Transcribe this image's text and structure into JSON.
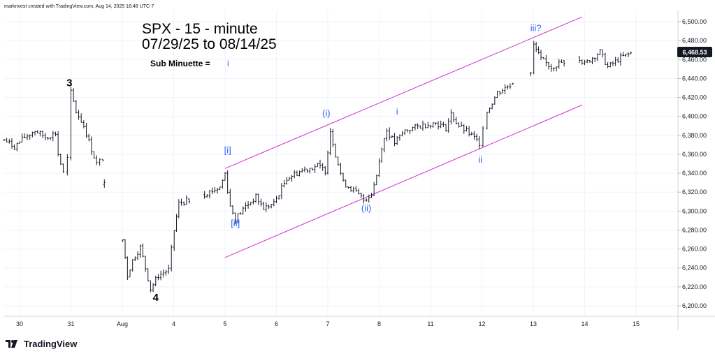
{
  "header": {
    "credit": "markrivest created with TradingView.com, Aug 14, 2025 18:48 UTC-7"
  },
  "brand": {
    "name": "TradingView"
  },
  "colors": {
    "price_bars": "#131722",
    "channel": "#cc33cc",
    "wave_labels_blue": "#2962ff",
    "wave_labels_black": "#000000",
    "last_price_box": "#131722",
    "grid": "#f0f3fa",
    "axis_text": "#131722"
  },
  "chart_data": {
    "type": "ohlc",
    "title": "SPX - 15 - minute",
    "subtitle": "07/29/25 to 08/14/25",
    "note_label": "Sub Minuette =",
    "note_value": "i",
    "last_price": "6,468.53",
    "x_axis": {
      "ticks": [
        {
          "label": "30",
          "slot": 0
        },
        {
          "label": "31",
          "slot": 1
        },
        {
          "label": "Aug",
          "slot": 2
        },
        {
          "label": "4",
          "slot": 3
        },
        {
          "label": "5",
          "slot": 4
        },
        {
          "label": "6",
          "slot": 5
        },
        {
          "label": "7",
          "slot": 6
        },
        {
          "label": "8",
          "slot": 7
        },
        {
          "label": "11",
          "slot": 8
        },
        {
          "label": "12",
          "slot": 9
        },
        {
          "label": "13",
          "slot": 10
        },
        {
          "label": "14",
          "slot": 11
        },
        {
          "label": "15",
          "slot": 12
        }
      ]
    },
    "y_axis": {
      "ylim": [
        6185,
        6520
      ],
      "ticks": [
        "6,200.00",
        "6,220.00",
        "6,240.00",
        "6,260.00",
        "6,280.00",
        "6,300.00",
        "6,320.00",
        "6,340.00",
        "6,360.00",
        "6,380.00",
        "6,400.00",
        "6,420.00",
        "6,440.00",
        "6,460.00",
        "6,480.00",
        "6,500.00"
      ]
    },
    "price_path": [
      {
        "t": -0.3,
        "p": 6375
      },
      {
        "t": -0.1,
        "p": 6368
      },
      {
        "t": 0.1,
        "p": 6378
      },
      {
        "t": 0.3,
        "p": 6385
      },
      {
        "t": 0.5,
        "p": 6378
      },
      {
        "t": 0.7,
        "p": 6382
      },
      {
        "t": 0.75,
        "p": 6360
      },
      {
        "t": 0.85,
        "p": 6340
      },
      {
        "t": 0.93,
        "p": 6355
      },
      {
        "t": 1.0,
        "p": 6425
      },
      {
        "t": 1.1,
        "p": 6405
      },
      {
        "t": 1.25,
        "p": 6390
      },
      {
        "t": 1.4,
        "p": 6365
      },
      {
        "t": 1.5,
        "p": 6350
      },
      {
        "t": 1.62,
        "p": 6355
      },
      {
        "t": 1.65,
        "p": 6330
      },
      {
        "t": 2.01,
        "p": 6270
      },
      {
        "t": 2.1,
        "p": 6232
      },
      {
        "t": 2.2,
        "p": 6248
      },
      {
        "t": 2.35,
        "p": 6262
      },
      {
        "t": 2.45,
        "p": 6240
      },
      {
        "t": 2.55,
        "p": 6218
      },
      {
        "t": 2.7,
        "p": 6232
      },
      {
        "t": 2.9,
        "p": 6238
      },
      {
        "t": 3.01,
        "p": 6280
      },
      {
        "t": 3.1,
        "p": 6308
      },
      {
        "t": 3.3,
        "p": 6312
      },
      {
        "t": 3.6,
        "p": 6318
      },
      {
        "t": 3.9,
        "p": 6325
      },
      {
        "t": 4.0,
        "p": 6340
      },
      {
        "t": 4.1,
        "p": 6305
      },
      {
        "t": 4.2,
        "p": 6292
      },
      {
        "t": 4.4,
        "p": 6305
      },
      {
        "t": 4.6,
        "p": 6315
      },
      {
        "t": 4.75,
        "p": 6303
      },
      {
        "t": 4.95,
        "p": 6308
      },
      {
        "t": 5.2,
        "p": 6335
      },
      {
        "t": 5.5,
        "p": 6343
      },
      {
        "t": 5.8,
        "p": 6348
      },
      {
        "t": 5.95,
        "p": 6343
      },
      {
        "t": 6.05,
        "p": 6385
      },
      {
        "t": 6.15,
        "p": 6360
      },
      {
        "t": 6.3,
        "p": 6330
      },
      {
        "t": 6.5,
        "p": 6322
      },
      {
        "t": 6.7,
        "p": 6312
      },
      {
        "t": 6.85,
        "p": 6318
      },
      {
        "t": 6.95,
        "p": 6338
      },
      {
        "t": 7.05,
        "p": 6368
      },
      {
        "t": 7.15,
        "p": 6385
      },
      {
        "t": 7.3,
        "p": 6372
      },
      {
        "t": 7.5,
        "p": 6385
      },
      {
        "t": 7.8,
        "p": 6390
      },
      {
        "t": 8.1,
        "p": 6393
      },
      {
        "t": 8.3,
        "p": 6388
      },
      {
        "t": 8.4,
        "p": 6402
      },
      {
        "t": 8.55,
        "p": 6390
      },
      {
        "t": 8.75,
        "p": 6382
      },
      {
        "t": 8.95,
        "p": 6372
      },
      {
        "t": 9.02,
        "p": 6390
      },
      {
        "t": 9.1,
        "p": 6405
      },
      {
        "t": 9.3,
        "p": 6425
      },
      {
        "t": 9.6,
        "p": 6435
      },
      {
        "t": 9.95,
        "p": 6445
      },
      {
        "t": 10.01,
        "p": 6475
      },
      {
        "t": 10.15,
        "p": 6460
      },
      {
        "t": 10.35,
        "p": 6452
      },
      {
        "t": 10.6,
        "p": 6458
      },
      {
        "t": 10.9,
        "p": 6462
      },
      {
        "t": 11.0,
        "p": 6455
      },
      {
        "t": 11.15,
        "p": 6462
      },
      {
        "t": 11.3,
        "p": 6468
      },
      {
        "t": 11.45,
        "p": 6452
      },
      {
        "t": 11.7,
        "p": 6462
      },
      {
        "t": 11.95,
        "p": 6468
      }
    ],
    "channel_lines": [
      {
        "name": "upper",
        "from": {
          "t": 4.0,
          "p": 6345
        },
        "to": {
          "t": 10.95,
          "p": 6505
        }
      },
      {
        "name": "lower",
        "from": {
          "t": 4.0,
          "p": 6251
        },
        "to": {
          "t": 10.95,
          "p": 6412
        }
      }
    ],
    "wave_labels": [
      {
        "text": "3",
        "t": 0.97,
        "p": 6432,
        "color": "black"
      },
      {
        "text": "4",
        "t": 2.65,
        "p": 6205,
        "color": "black"
      },
      {
        "text": "[i]",
        "t": 4.05,
        "p": 6361,
        "color": "blue"
      },
      {
        "text": "[ii]",
        "t": 4.2,
        "p": 6284,
        "color": "blue"
      },
      {
        "text": "(i)",
        "t": 5.97,
        "p": 6400,
        "color": "blue"
      },
      {
        "text": "(ii)",
        "t": 6.75,
        "p": 6300,
        "color": "blue"
      },
      {
        "text": "i",
        "t": 7.35,
        "p": 6402,
        "color": "blue"
      },
      {
        "text": "ii",
        "t": 8.97,
        "p": 6351,
        "color": "blue"
      },
      {
        "text": "iii?",
        "t": 10.05,
        "p": 6490,
        "color": "blue"
      }
    ]
  }
}
